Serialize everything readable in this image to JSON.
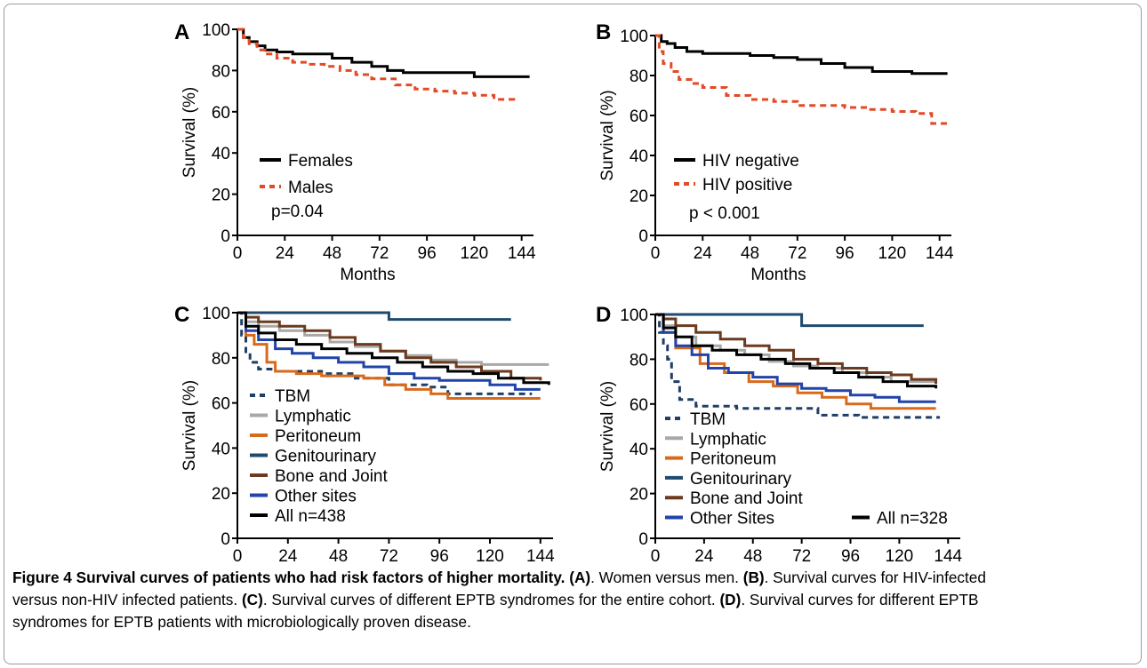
{
  "caption": {
    "label": "Figure 4",
    "title": "Survival curves of patients who had risk factors of higher mortality.",
    "parts": [
      {
        "tag": "(A)",
        "text": ". Women versus men. "
      },
      {
        "tag": "(B)",
        "text": ". Survival curves for HIV-infected versus non-HIV infected patients. "
      },
      {
        "tag": "(C)",
        "text": ". Survival curves of different EPTB syndromes for the entire cohort. "
      },
      {
        "tag": "(D)",
        "text": ". Survival curves for different EPTB syndromes for EPTB patients with microbiologically proven disease."
      }
    ],
    "lines": [
      [
        "Figure 4 Survival curves of patients who had risk factors of higher mortality.",
        " ",
        "(A)",
        ". Women versus men. ",
        "(B)",
        ". Survival curves for HIV-infected"
      ],
      [
        "versus non-HIV infected patients. ",
        "(C)",
        ". Survival curves of different EPTB syndromes for the entire cohort. ",
        "(D)",
        ". Survival curves for different EPTB"
      ],
      [
        "syndromes for EPTB patients with microbiologically proven disease."
      ]
    ]
  },
  "chart_data": [
    {
      "panel": "A",
      "type": "line",
      "xlabel": "Months",
      "ylabel": "Survival (%)",
      "xticks": [
        0,
        24,
        48,
        72,
        96,
        120,
        144
      ],
      "yticks": [
        0,
        20,
        40,
        60,
        80,
        100
      ],
      "xlim": [
        0,
        150
      ],
      "ylim": [
        0,
        100
      ],
      "annotation": "p=0.04",
      "series": [
        {
          "name": "Females",
          "color": "#000000",
          "style": "solid",
          "x": [
            0,
            3,
            6,
            10,
            14,
            20,
            28,
            40,
            48,
            58,
            68,
            76,
            84,
            96,
            110,
            120,
            130,
            148
          ],
          "y": [
            100,
            96,
            94,
            92,
            90,
            89,
            88,
            88,
            86,
            84,
            82,
            80,
            79,
            79,
            79,
            77,
            77,
            77
          ]
        },
        {
          "name": "Males",
          "color": "#e34a26",
          "style": "dashed",
          "x": [
            0,
            3,
            6,
            10,
            14,
            20,
            28,
            36,
            44,
            52,
            60,
            68,
            80,
            90,
            100,
            110,
            120,
            130,
            140
          ],
          "y": [
            100,
            96,
            93,
            90,
            88,
            86,
            84,
            83,
            82,
            80,
            78,
            76,
            73,
            71,
            70,
            69,
            68,
            66,
            64
          ]
        }
      ]
    },
    {
      "panel": "B",
      "type": "line",
      "xlabel": "Months",
      "ylabel": "Survival (%)",
      "xticks": [
        0,
        24,
        48,
        72,
        96,
        120,
        144
      ],
      "yticks": [
        0,
        20,
        40,
        60,
        80,
        100
      ],
      "xlim": [
        0,
        150
      ],
      "ylim": [
        0,
        100
      ],
      "annotation": "p < 0.001",
      "series": [
        {
          "name": "HIV negative",
          "color": "#000000",
          "style": "solid",
          "x": [
            0,
            3,
            6,
            10,
            16,
            24,
            36,
            48,
            60,
            72,
            84,
            96,
            110,
            120,
            130,
            148
          ],
          "y": [
            100,
            97,
            96,
            94,
            92,
            91,
            91,
            90,
            89,
            88,
            86,
            84,
            82,
            82,
            81,
            81
          ]
        },
        {
          "name": "HIV positive",
          "color": "#e34a26",
          "style": "dashed",
          "x": [
            0,
            2,
            4,
            8,
            12,
            18,
            24,
            36,
            48,
            60,
            72,
            84,
            96,
            108,
            120,
            132,
            140,
            148
          ],
          "y": [
            100,
            92,
            86,
            82,
            78,
            76,
            74,
            70,
            68,
            67,
            65,
            65,
            64,
            63,
            62,
            61,
            56,
            56
          ]
        }
      ]
    },
    {
      "panel": "C",
      "type": "line",
      "xlabel": "Months",
      "ylabel": "Survival (%)",
      "xticks": [
        0,
        24,
        48,
        72,
        96,
        120,
        144
      ],
      "yticks": [
        0,
        20,
        40,
        60,
        80,
        100
      ],
      "xlim": [
        0,
        150
      ],
      "ylim": [
        0,
        100
      ],
      "series": [
        {
          "name": "TBM",
          "color": "#1f3f66",
          "style": "dashed",
          "x": [
            0,
            2,
            4,
            6,
            10,
            16,
            24,
            40,
            56,
            72,
            90,
            100,
            120,
            140
          ],
          "y": [
            100,
            90,
            82,
            78,
            75,
            74,
            74,
            73,
            71,
            68,
            67,
            64,
            64,
            64
          ]
        },
        {
          "name": "Lymphatic",
          "color": "#a8a8a8",
          "style": "solid",
          "x": [
            0,
            4,
            10,
            20,
            32,
            44,
            56,
            68,
            80,
            92,
            104,
            116,
            130,
            148
          ],
          "y": [
            100,
            96,
            94,
            92,
            90,
            87,
            85,
            83,
            81,
            79,
            78,
            77,
            77,
            77
          ]
        },
        {
          "name": "Peritoneum",
          "color": "#d86a1c",
          "style": "solid",
          "x": [
            0,
            4,
            8,
            14,
            18,
            28,
            40,
            60,
            70,
            80,
            92,
            100,
            120,
            144
          ],
          "y": [
            100,
            90,
            86,
            78,
            74,
            73,
            72,
            71,
            68,
            66,
            64,
            62,
            62,
            62
          ]
        },
        {
          "name": "Genitourinary",
          "color": "#1f4a6e",
          "style": "solid",
          "x": [
            0,
            60,
            72,
            80,
            130
          ],
          "y": [
            100,
            100,
            97,
            97,
            97
          ]
        },
        {
          "name": "Bone and Joint",
          "color": "#6b3a1f",
          "style": "solid",
          "x": [
            0,
            4,
            10,
            20,
            32,
            44,
            56,
            68,
            80,
            92,
            104,
            116,
            130,
            144
          ],
          "y": [
            100,
            98,
            96,
            94,
            92,
            89,
            86,
            83,
            80,
            78,
            76,
            74,
            71,
            70
          ]
        },
        {
          "name": "Other sites",
          "color": "#2244aa",
          "style": "solid",
          "x": [
            0,
            4,
            10,
            18,
            26,
            36,
            48,
            60,
            72,
            84,
            96,
            108,
            120,
            132,
            144
          ],
          "y": [
            100,
            92,
            88,
            84,
            82,
            80,
            78,
            76,
            73,
            71,
            70,
            70,
            68,
            66,
            66
          ]
        },
        {
          "name": "All n=438",
          "color": "#000000",
          "style": "solid",
          "x": [
            0,
            4,
            10,
            18,
            28,
            40,
            52,
            64,
            76,
            88,
            100,
            112,
            124,
            136,
            148
          ],
          "y": [
            100,
            94,
            91,
            88,
            86,
            84,
            82,
            80,
            78,
            76,
            74,
            73,
            71,
            69,
            68
          ]
        }
      ]
    },
    {
      "panel": "D",
      "type": "line",
      "xlabel": "Months",
      "ylabel": "Survival (%)",
      "xticks": [
        0,
        24,
        48,
        72,
        96,
        120,
        144
      ],
      "yticks": [
        0,
        20,
        40,
        60,
        80,
        100
      ],
      "xlim": [
        0,
        150
      ],
      "ylim": [
        0,
        100
      ],
      "series": [
        {
          "name": "TBM",
          "color": "#1f3f66",
          "style": "dashed",
          "x": [
            0,
            2,
            4,
            6,
            8,
            12,
            20,
            40,
            60,
            80,
            100,
            120,
            140
          ],
          "y": [
            100,
            92,
            86,
            80,
            70,
            62,
            59,
            58,
            58,
            55,
            54,
            54,
            54
          ]
        },
        {
          "name": "Lymphatic",
          "color": "#a8a8a8",
          "style": "solid",
          "x": [
            0,
            4,
            10,
            20,
            32,
            44,
            56,
            68,
            80,
            92,
            104,
            116,
            126,
            138
          ],
          "y": [
            100,
            95,
            90,
            86,
            84,
            82,
            79,
            77,
            76,
            74,
            72,
            70,
            70,
            70
          ]
        },
        {
          "name": "Peritoneum",
          "color": "#d86a1c",
          "style": "solid",
          "x": [
            0,
            4,
            10,
            22,
            34,
            46,
            58,
            70,
            82,
            94,
            106,
            120,
            138
          ],
          "y": [
            100,
            92,
            85,
            78,
            74,
            70,
            68,
            65,
            63,
            60,
            58,
            58,
            58
          ]
        },
        {
          "name": "Genitourinary",
          "color": "#1f4a6e",
          "style": "solid",
          "x": [
            0,
            60,
            72,
            80,
            132
          ],
          "y": [
            100,
            100,
            95,
            95,
            95
          ]
        },
        {
          "name": "Bone and Joint",
          "color": "#6b3a1f",
          "style": "solid",
          "x": [
            0,
            4,
            10,
            20,
            32,
            44,
            56,
            68,
            80,
            92,
            104,
            116,
            126,
            138
          ],
          "y": [
            100,
            98,
            95,
            92,
            89,
            86,
            84,
            80,
            78,
            76,
            74,
            73,
            71,
            69
          ]
        },
        {
          "name": "Other Sites",
          "color": "#2244aa",
          "style": "solid",
          "x": [
            0,
            4,
            10,
            18,
            26,
            36,
            48,
            60,
            72,
            84,
            96,
            108,
            120,
            138
          ],
          "y": [
            100,
            92,
            86,
            82,
            76,
            74,
            72,
            69,
            67,
            66,
            64,
            63,
            61,
            61
          ]
        },
        {
          "name": "All n=328",
          "color": "#000000",
          "style": "solid",
          "x": [
            0,
            4,
            10,
            18,
            28,
            40,
            52,
            64,
            76,
            88,
            100,
            112,
            124,
            138
          ],
          "y": [
            100,
            94,
            90,
            86,
            84,
            82,
            80,
            78,
            76,
            74,
            72,
            70,
            68,
            67
          ]
        }
      ]
    }
  ]
}
